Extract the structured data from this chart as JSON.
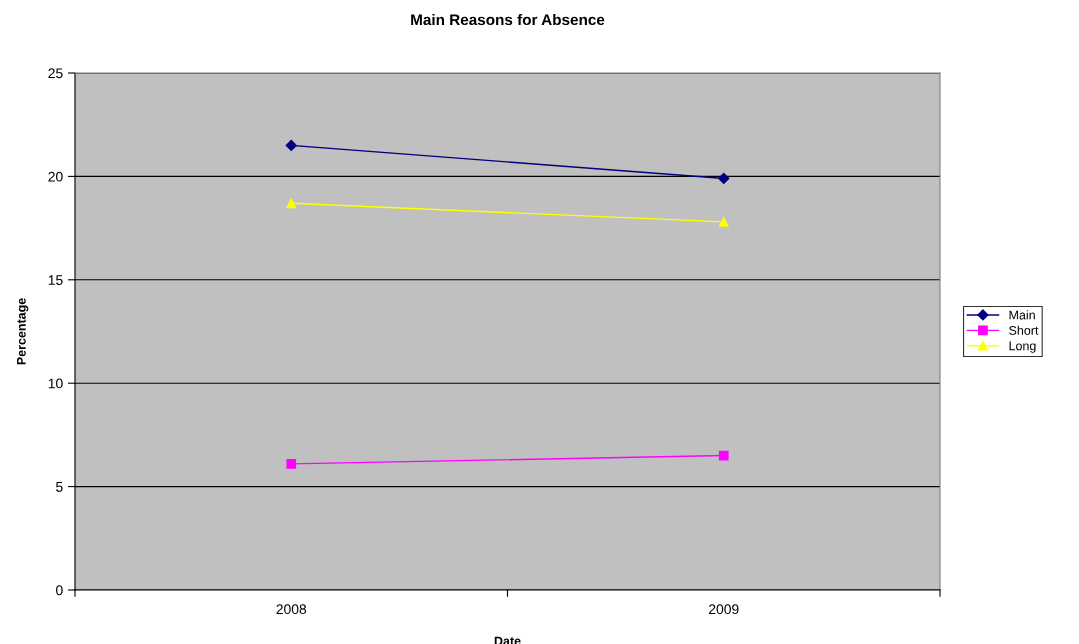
{
  "chart_data": {
    "type": "line",
    "title": "Main Reasons for Absence",
    "xlabel": "Date",
    "ylabel": "Percentage",
    "categories": [
      "2008",
      "2009"
    ],
    "series": [
      {
        "name": "Main",
        "color": "#000080",
        "values": [
          21.5,
          19.9
        ],
        "marker": "diamond"
      },
      {
        "name": "Short",
        "color": "#ff00ff",
        "values": [
          6.1,
          6.5
        ],
        "marker": "square"
      },
      {
        "name": "Long",
        "color": "#ffff00",
        "values": [
          18.7,
          17.8
        ],
        "marker": "triangle"
      }
    ],
    "ylim": [
      0,
      25
    ],
    "yticks": [
      0,
      5,
      10,
      15,
      20,
      25
    ],
    "grid": "y",
    "legend": "right"
  }
}
